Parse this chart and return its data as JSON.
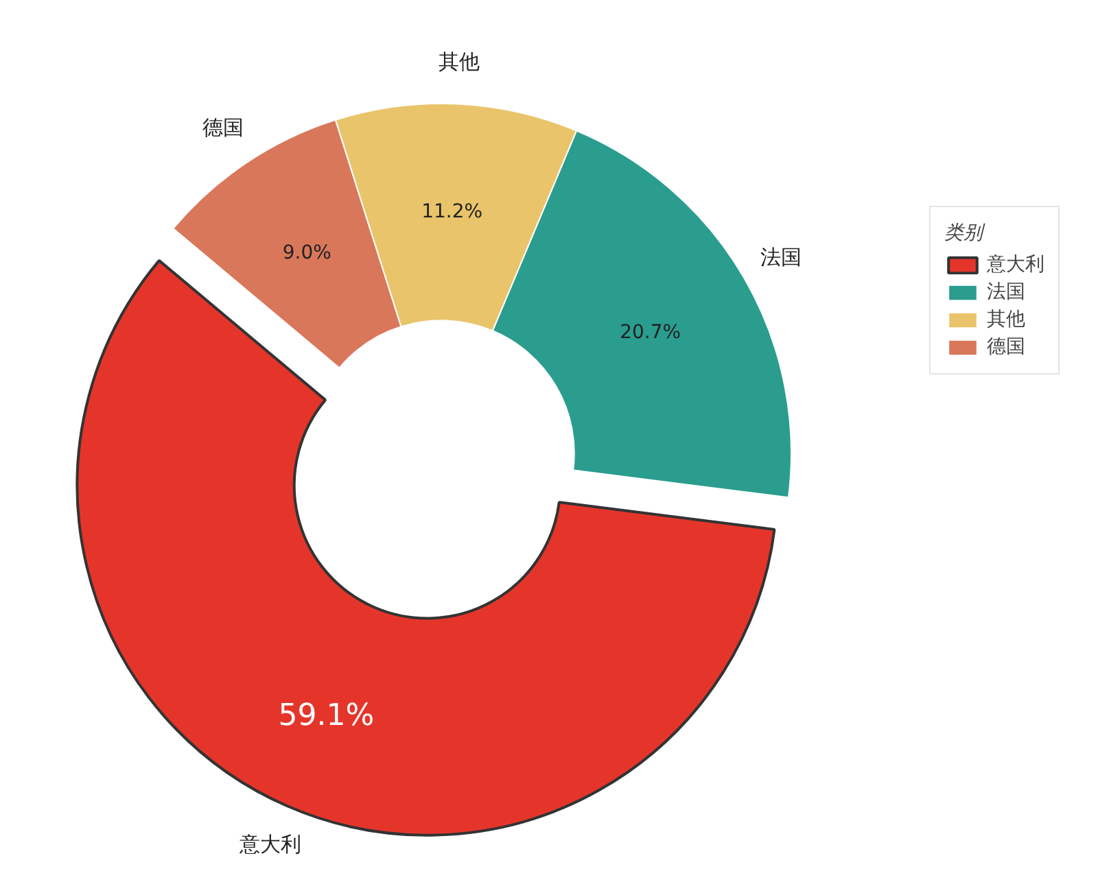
{
  "chart_data": {
    "type": "donut",
    "categories": [
      "意大利",
      "法国",
      "其他",
      "德国"
    ],
    "values": [
      59.1,
      20.7,
      11.2,
      9.0
    ],
    "colors": [
      "#e5352b",
      "#2a9d8f",
      "#e9c46a",
      "#d9775b"
    ],
    "value_labels": [
      "59.1%",
      "20.7%",
      "11.2%",
      "9.0%"
    ],
    "legend_title": "类别",
    "legend": "right"
  }
}
